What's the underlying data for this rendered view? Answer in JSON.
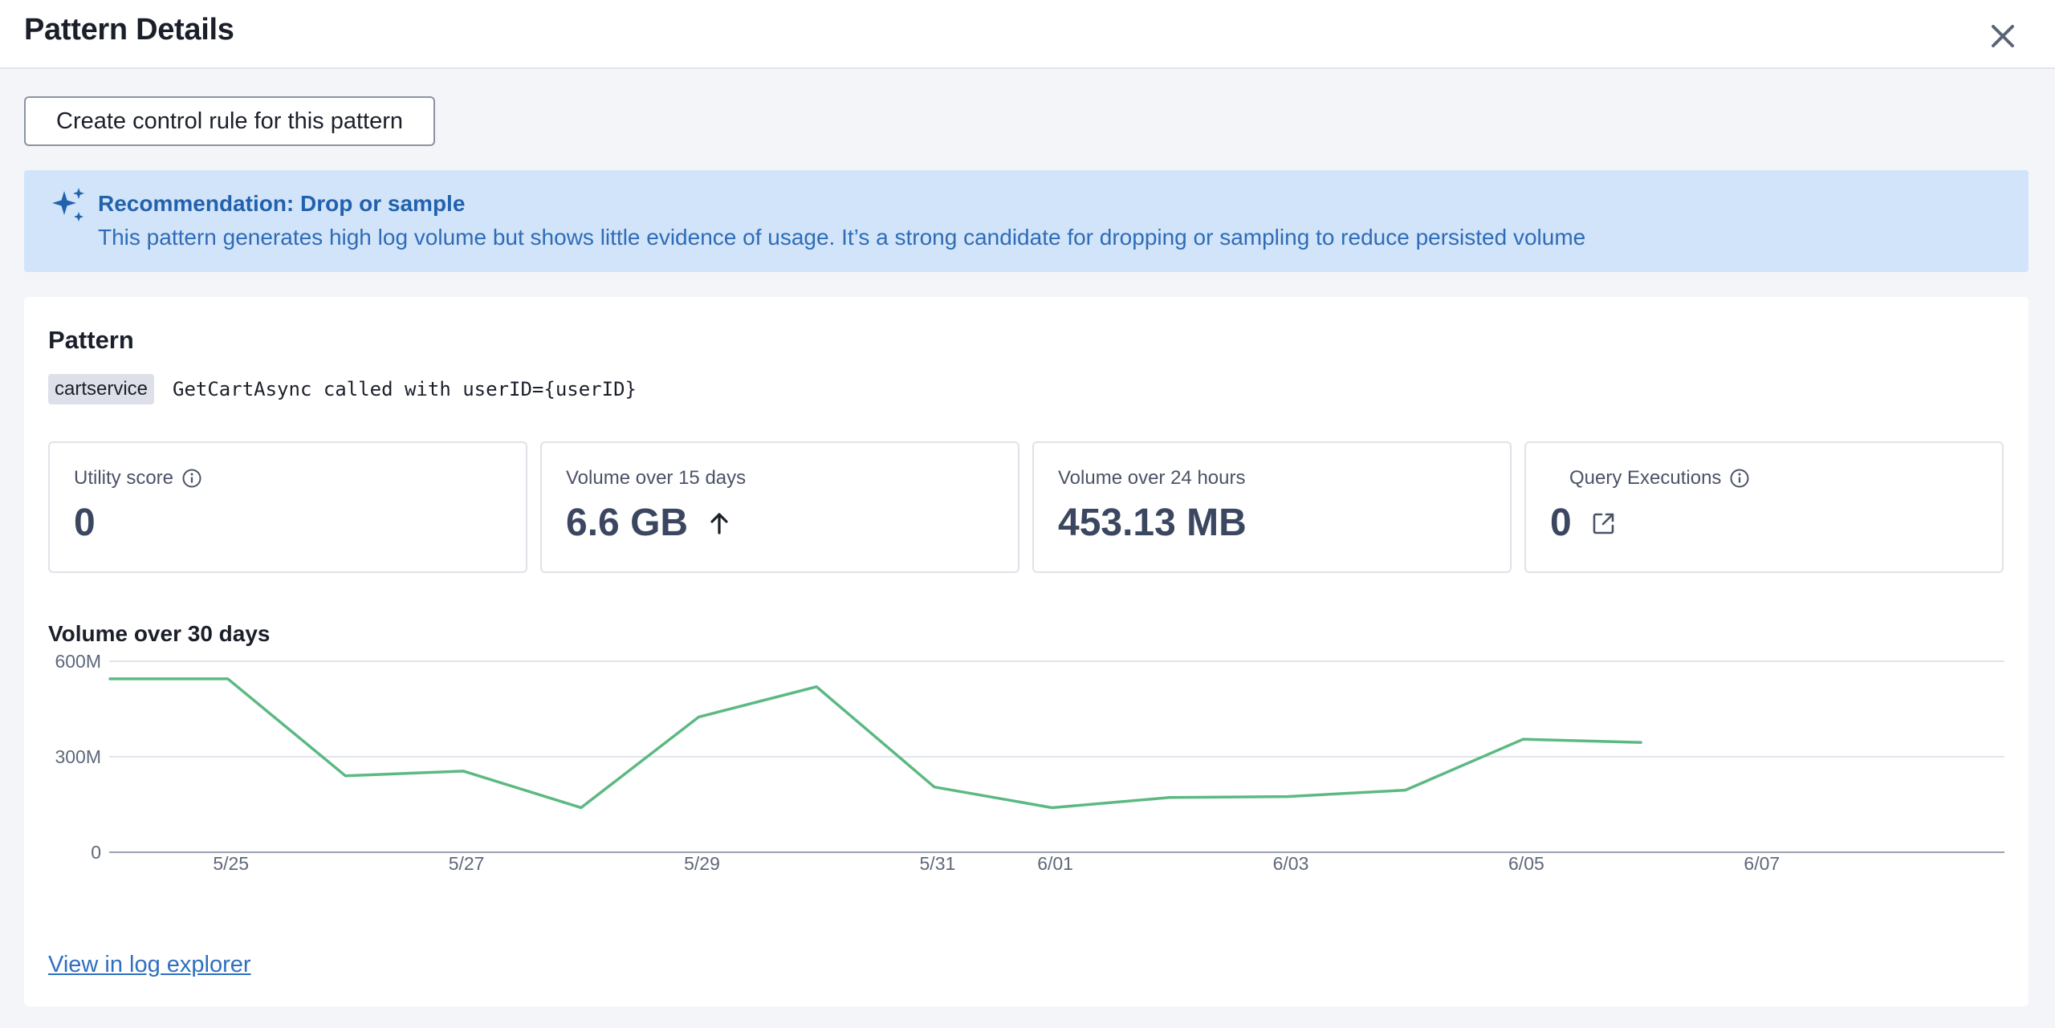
{
  "header": {
    "title": "Pattern Details",
    "close_icon": "close-icon"
  },
  "actions": {
    "create_rule_label": "Create control rule for this pattern"
  },
  "recommendation": {
    "icon": "sparkles-icon",
    "title": "Recommendation: Drop or sample",
    "text": "This pattern generates high log volume but shows little evidence of usage. It’s a strong candidate for dropping or sampling to reduce persisted volume",
    "background_color": "#d2e4f9",
    "text_color": "#2e6cb7"
  },
  "pattern": {
    "heading": "Pattern",
    "service_tag": "cartservice",
    "template": "GetCartAsync called with userID={userID}"
  },
  "metrics": {
    "utility": {
      "label": "Utility score",
      "value": "0",
      "icon": "info-icon"
    },
    "volume_15d": {
      "label": "Volume over 15 days",
      "value": "6.6 GB",
      "icon": "arrow-up-icon"
    },
    "volume_24h": {
      "label": "Volume over 24 hours",
      "value": "453.13 MB"
    },
    "query": {
      "label": "Query Executions",
      "value": "0",
      "icon": "info-icon",
      "link_icon": "external-link-icon"
    }
  },
  "chart_title": "Volume over 30 days",
  "chart_data": {
    "type": "line",
    "title": "Volume over 30 days",
    "xlabel": "",
    "ylabel": "",
    "ylim": [
      0,
      600000000
    ],
    "yticks": [
      {
        "value": 0,
        "label": "0"
      },
      {
        "value": 300000000,
        "label": "300M"
      },
      {
        "value": 600000000,
        "label": "600M"
      }
    ],
    "x_ticks": [
      "5/25",
      "5/27",
      "5/29",
      "5/31",
      "6/01",
      "6/03",
      "6/05",
      "6/07"
    ],
    "series": [
      {
        "color": "#5cb982",
        "points": [
          {
            "x": "5/24",
            "y": 545000000
          },
          {
            "x": "5/25",
            "y": 545000000
          },
          {
            "x": "5/26",
            "y": 240000000
          },
          {
            "x": "5/27",
            "y": 255000000
          },
          {
            "x": "5/28",
            "y": 140000000
          },
          {
            "x": "5/29",
            "y": 425000000
          },
          {
            "x": "5/30",
            "y": 520000000
          },
          {
            "x": "5/31",
            "y": 205000000
          },
          {
            "x": "6/01",
            "y": 140000000
          },
          {
            "x": "6/02",
            "y": 172000000
          },
          {
            "x": "6/03",
            "y": 175000000
          },
          {
            "x": "6/04",
            "y": 195000000
          },
          {
            "x": "6/05",
            "y": 355000000
          },
          {
            "x": "6/06",
            "y": 345000000
          }
        ]
      }
    ],
    "grid": true,
    "legend": "none"
  },
  "footer": {
    "view_link": "View in log explorer"
  }
}
